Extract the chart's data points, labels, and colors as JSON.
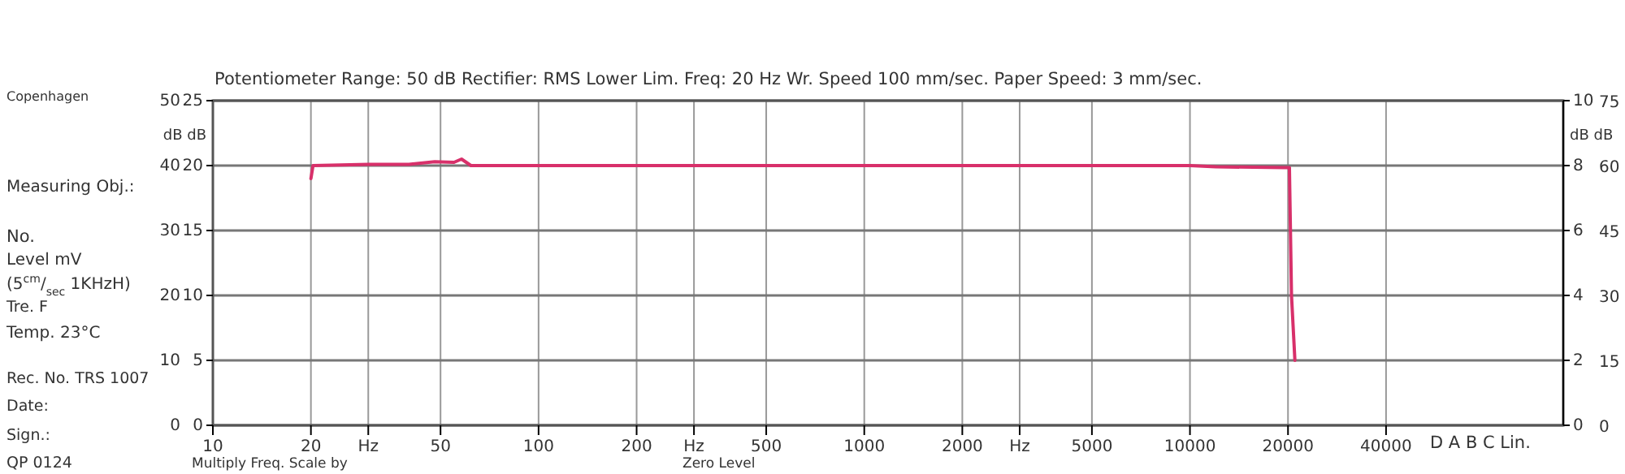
{
  "chart_data": {
    "type": "line",
    "title": "Potentiometer Range: 50 dB   Rectifier: RMS   Lower Lim. Freq: 20 Hz   Wr. Speed 100 mm/sec.   Paper Speed: 3 mm/sec.",
    "ylabel": "dB dB",
    "y2label": "dB dB",
    "log": "x",
    "grid": true,
    "xlim": [
      10,
      140000
    ],
    "xticks": [
      10,
      20,
      {
        "value": 30,
        "label": "Hz"
      },
      50,
      100,
      200,
      {
        "value": 300,
        "label": "Hz"
      },
      500,
      1000,
      2000,
      {
        "value": 3000,
        "label": "Hz"
      },
      5000,
      10000,
      20000,
      40000
    ],
    "ylim": [
      0,
      50
    ],
    "yticks": [
      0,
      10,
      20,
      30,
      40,
      50
    ],
    "y3lim": [
      0,
      25
    ],
    "y3ticks": [
      0,
      5,
      10,
      15,
      20,
      25
    ],
    "y2lim": [
      0,
      10
    ],
    "y2ticks": [
      0,
      2,
      4,
      6,
      8,
      10
    ],
    "series": [
      {
        "color": "#d8306a",
        "x": [
          20,
          20.3,
          30,
          40,
          48,
          55,
          58,
          62,
          100,
          1000,
          10000,
          12000,
          19500,
          20200,
          20500,
          21000
        ],
        "values": [
          38,
          40,
          40.2,
          40.2,
          40.6,
          40.5,
          41,
          40,
          40,
          40,
          40,
          39.8,
          39.7,
          39.7,
          20,
          10
        ]
      }
    ],
    "annotations": [
      "Copenhagen",
      "Measuring Obj.:",
      "No.",
      "Level    mV",
      "(5$^{cm}$/$_{sec}$ 1KHzH)",
      "Tre.  F",
      "Temp.  23°C",
      "Rec. No.  TRS 1007",
      "Date:",
      "Sign.:",
      "QP 0124",
      "Multiply Freq. Scale by",
      "Zero Level",
      "D   A   B   C   Lin.",
      "75",
      "60",
      "45",
      "30",
      "15",
      "0"
    ]
  }
}
